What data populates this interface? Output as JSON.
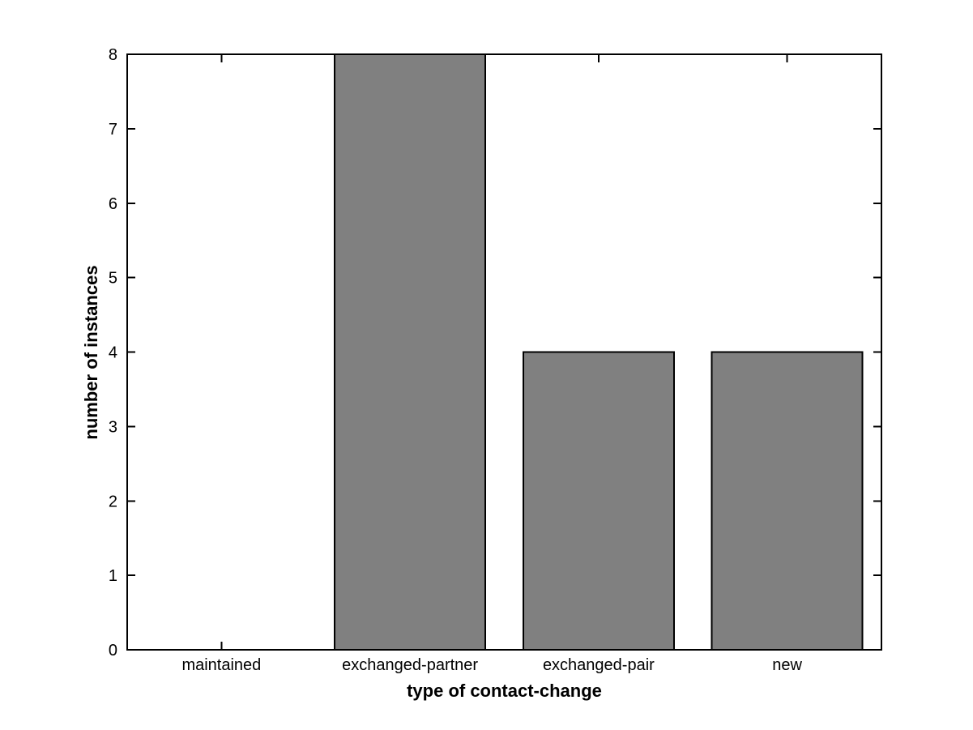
{
  "chart_data": {
    "type": "bar",
    "categories": [
      "maintained",
      "exchanged-partner",
      "exchanged-pair",
      "new"
    ],
    "values": [
      0,
      8,
      4,
      4
    ],
    "xlabel": "type of contact-change",
    "ylabel": "number of instances",
    "ylim": [
      0,
      8
    ],
    "yticks": [
      0,
      1,
      2,
      3,
      4,
      5,
      6,
      7,
      8
    ],
    "bar_color": "#808080",
    "bar_edge_color": "#000000",
    "axis_color": "#000000",
    "background_color": "#ffffff",
    "bar_width_fraction": 0.8,
    "grid": false,
    "legend_position": "none",
    "tick_direction": "in",
    "box": true
  }
}
